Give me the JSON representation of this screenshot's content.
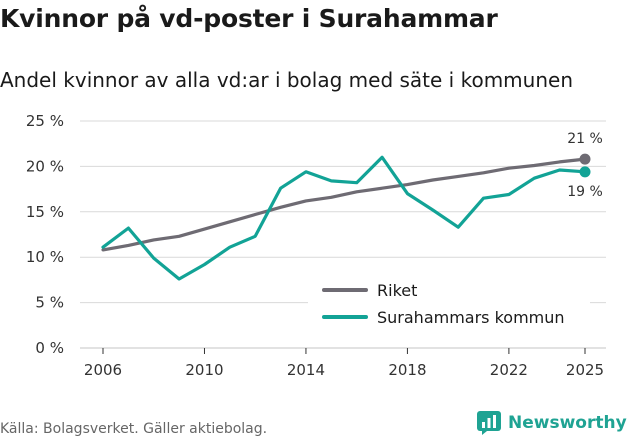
{
  "header": {
    "title": "Kvinnor på vd-poster i Surahammar",
    "subtitle": "Andel kvinnor av alla vd:ar i bolag med säte i kommunen"
  },
  "footer": {
    "source": "Källa: Bolagsverket. Gäller aktiebolag.",
    "brand": "Newsworthy"
  },
  "colors": {
    "riket": "#6e6b73",
    "kommun": "#12a396",
    "grid": "#d9d9d9",
    "brand": "#1fa393"
  },
  "chart_data": {
    "type": "line",
    "title": "Andel kvinnor av alla vd:ar i bolag med säte i kommunen",
    "xlabel": "",
    "ylabel": "",
    "ylim": [
      0,
      25
    ],
    "xlim": [
      2006,
      2025
    ],
    "y_ticks": [
      0,
      5,
      10,
      15,
      20,
      25
    ],
    "y_tick_labels": [
      "0 %",
      "5 %",
      "10 %",
      "15 %",
      "20 %",
      "25 %"
    ],
    "x_ticks": [
      2006,
      2010,
      2014,
      2018,
      2022,
      2025
    ],
    "x_tick_labels": [
      "2006",
      "2010",
      "2014",
      "2018",
      "2022",
      "2025"
    ],
    "grid": true,
    "legend_position": "bottom-right",
    "x": [
      2006,
      2007,
      2008,
      2009,
      2010,
      2011,
      2012,
      2013,
      2014,
      2015,
      2016,
      2017,
      2018,
      2019,
      2020,
      2021,
      2022,
      2023,
      2024,
      2025
    ],
    "series": [
      {
        "name": "Riket",
        "color_key": "riket",
        "values": [
          10.8,
          11.3,
          11.9,
          12.3,
          13.1,
          13.9,
          14.7,
          15.5,
          16.2,
          16.6,
          17.2,
          17.6,
          18.0,
          18.5,
          18.9,
          19.3,
          19.8,
          20.1,
          20.5,
          20.8
        ],
        "end_label": "21 %",
        "end_label_position": "above"
      },
      {
        "name": "Surahammars kommun",
        "color_key": "kommun",
        "values": [
          11.1,
          13.2,
          9.9,
          7.6,
          9.2,
          11.1,
          12.3,
          17.6,
          19.4,
          18.4,
          18.2,
          21.0,
          17.0,
          15.2,
          13.3,
          16.5,
          16.9,
          18.7,
          19.6,
          19.4
        ],
        "end_label": "19 %",
        "end_label_position": "below"
      }
    ]
  }
}
